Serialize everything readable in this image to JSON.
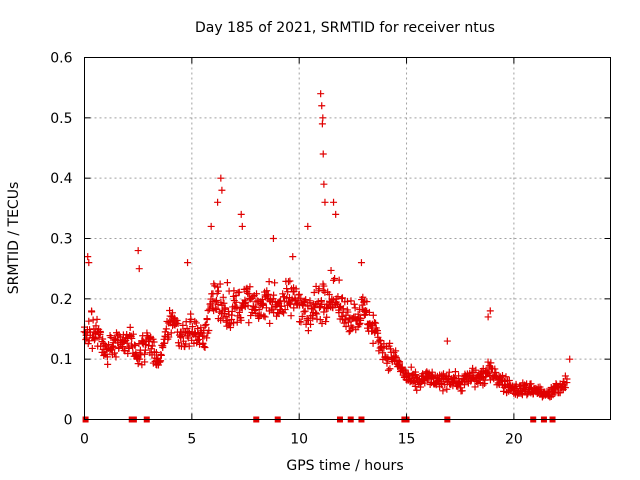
{
  "chart_data": {
    "type": "scatter",
    "title": "Day 185 of 2021, SRMTID for receiver ntus",
    "xlabel": "GPS time / hours",
    "ylabel": "SRMTID / TECUs",
    "xlim": [
      0,
      24.5
    ],
    "ylim": [
      0,
      0.6
    ],
    "x_ticks": [
      "0",
      "5",
      "10",
      "15",
      "20"
    ],
    "x_tick_values": [
      0,
      5,
      10,
      15,
      20
    ],
    "y_ticks": [
      "0",
      "0.1",
      "0.2",
      "0.3",
      "0.4",
      "0.5",
      "0.6"
    ],
    "y_tick_values": [
      0,
      0.1,
      0.2,
      0.3,
      0.4,
      0.5,
      0.6
    ],
    "grid": true,
    "marker": "+",
    "color": "#e00000",
    "series": [
      {
        "name": "SRMTID",
        "trend": {
          "x": [
            0,
            0.5,
            1,
            1.5,
            2,
            2.5,
            3,
            3.5,
            4,
            4.5,
            5,
            5.5,
            6,
            6.5,
            7,
            7.5,
            8,
            8.5,
            9,
            9.5,
            10,
            10.5,
            11,
            11.5,
            12,
            12.5,
            13,
            13.5,
            14,
            14.5,
            15,
            15.5,
            16,
            16.5,
            17,
            17.5,
            18,
            18.5,
            19,
            19.5,
            20,
            20.5,
            21,
            21.5,
            22,
            22.5
          ],
          "y": [
            0.14,
            0.15,
            0.11,
            0.13,
            0.13,
            0.11,
            0.13,
            0.09,
            0.17,
            0.14,
            0.15,
            0.13,
            0.2,
            0.19,
            0.18,
            0.2,
            0.18,
            0.2,
            0.19,
            0.2,
            0.2,
            0.17,
            0.2,
            0.21,
            0.18,
            0.17,
            0.18,
            0.15,
            0.11,
            0.1,
            0.07,
            0.06,
            0.07,
            0.06,
            0.07,
            0.06,
            0.07,
            0.07,
            0.08,
            0.06,
            0.05,
            0.05,
            0.05,
            0.04,
            0.05,
            0.06
          ],
          "spread": [
            0.05,
            0.06,
            0.04,
            0.04,
            0.04,
            0.04,
            0.04,
            0.03,
            0.05,
            0.05,
            0.05,
            0.05,
            0.06,
            0.07,
            0.06,
            0.05,
            0.05,
            0.05,
            0.05,
            0.05,
            0.06,
            0.06,
            0.07,
            0.06,
            0.05,
            0.05,
            0.05,
            0.05,
            0.04,
            0.03,
            0.025,
            0.025,
            0.025,
            0.025,
            0.025,
            0.025,
            0.03,
            0.03,
            0.03,
            0.025,
            0.02,
            0.02,
            0.02,
            0.02,
            0.02,
            0.025
          ]
        },
        "peaks": [
          {
            "x": 0.15,
            "y": 0.27
          },
          {
            "x": 0.2,
            "y": 0.26
          },
          {
            "x": 2.5,
            "y": 0.28
          },
          {
            "x": 2.55,
            "y": 0.25
          },
          {
            "x": 4.8,
            "y": 0.26
          },
          {
            "x": 5.9,
            "y": 0.32
          },
          {
            "x": 6.2,
            "y": 0.36
          },
          {
            "x": 6.35,
            "y": 0.4
          },
          {
            "x": 6.4,
            "y": 0.38
          },
          {
            "x": 7.3,
            "y": 0.34
          },
          {
            "x": 7.35,
            "y": 0.32
          },
          {
            "x": 8.8,
            "y": 0.3
          },
          {
            "x": 9.7,
            "y": 0.27
          },
          {
            "x": 10.4,
            "y": 0.32
          },
          {
            "x": 11.0,
            "y": 0.54
          },
          {
            "x": 11.05,
            "y": 0.52
          },
          {
            "x": 11.1,
            "y": 0.5
          },
          {
            "x": 11.08,
            "y": 0.49
          },
          {
            "x": 11.12,
            "y": 0.44
          },
          {
            "x": 11.15,
            "y": 0.39
          },
          {
            "x": 11.2,
            "y": 0.36
          },
          {
            "x": 11.6,
            "y": 0.36
          },
          {
            "x": 11.7,
            "y": 0.34
          },
          {
            "x": 12.9,
            "y": 0.26
          },
          {
            "x": 16.9,
            "y": 0.13
          },
          {
            "x": 18.8,
            "y": 0.17
          },
          {
            "x": 18.9,
            "y": 0.18
          },
          {
            "x": 22.6,
            "y": 0.1
          }
        ],
        "zeros_x": [
          0.05,
          2.2,
          2.3,
          2.9,
          8.0,
          9.0,
          11.9,
          12.4,
          12.9,
          14.9,
          15.0,
          16.9,
          20.9,
          21.4,
          21.8
        ]
      }
    ]
  }
}
